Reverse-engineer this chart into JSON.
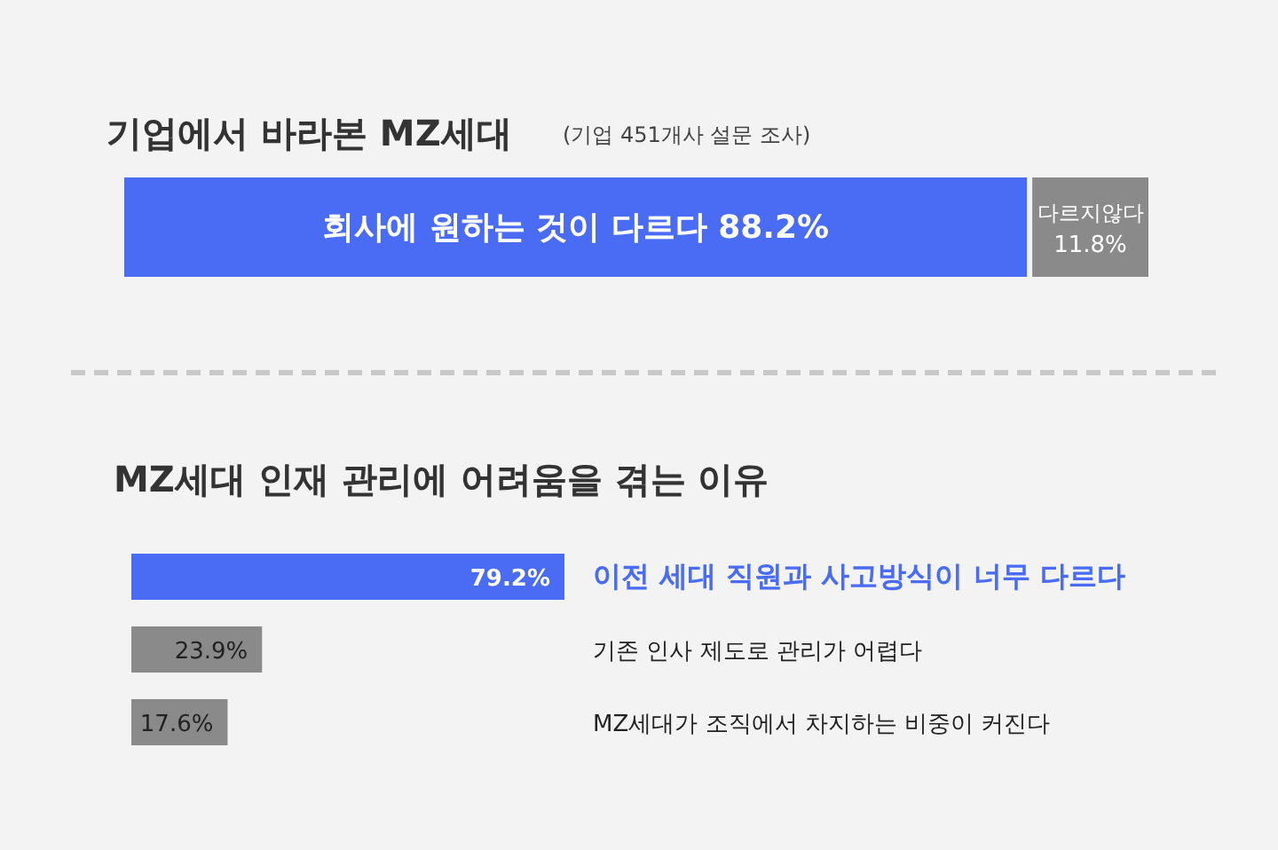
{
  "chart_data": [
    {
      "type": "bar",
      "orientation": "horizontal",
      "stacked": true,
      "title": "기업에서 바라본 MZ세대",
      "subtitle": "(기업 451개사 설문 조사)",
      "categories": [
        null
      ],
      "series": [
        {
          "name": "회사에 원하는 것이 다르다",
          "color": "#4a6cf5",
          "values": [
            88.2
          ],
          "value_labels": [
            "88.2%"
          ]
        },
        {
          "name": "다르지않다",
          "color": "#8a8a8a",
          "values": [
            11.8
          ],
          "value_labels": [
            "11.8%"
          ]
        }
      ]
    },
    {
      "type": "bar",
      "orientation": "horizontal",
      "title": "MZ세대 인재 관리에 어려움을 겪는 이유",
      "categories": [
        "이전 세대 직원과 사고방식이 너무 다르다",
        "기존 인사 제도로 관리가 어렵다",
        "MZ세대가 조직에서 차지하는 비중이 커진다"
      ],
      "values": [
        79.2,
        23.9,
        17.6
      ],
      "colors": [
        "#4a6cf5",
        "#8a8a8a",
        "#8a8a8a"
      ],
      "value_labels": [
        "79.2%",
        "23.9%",
        "17.6%"
      ]
    }
  ]
}
